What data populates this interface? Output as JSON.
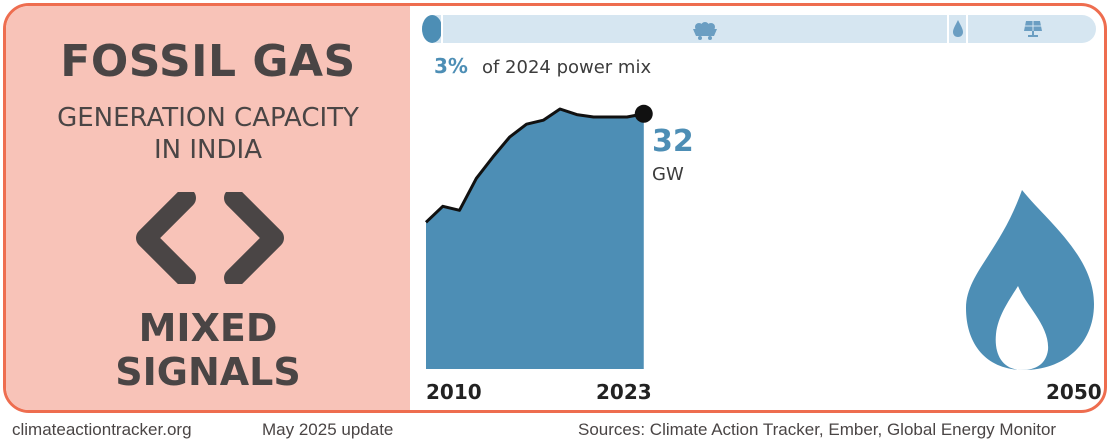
{
  "header": {
    "title": "FOSSIL GAS",
    "subtitle_lines": [
      "GENERATION CAPACITY",
      "IN INDIA"
    ]
  },
  "signal": {
    "icon": "mixed-signals-chevrons-icon",
    "label_lines": [
      "MIXED",
      "SIGNALS"
    ]
  },
  "power_mix": {
    "share": "3%",
    "label": "of 2024 power mix",
    "share_fraction": 0.03,
    "icons": [
      "coal-cart-icon",
      "water-drop-icon",
      "solar-panel-icon"
    ]
  },
  "colors": {
    "accent": "#4d8eb5",
    "border": "#ee6d4f",
    "left_panel": "#f8c3b8",
    "text_dark": "#4a4545",
    "bar_track": "#d6e6f1"
  },
  "chart_data": {
    "type": "area",
    "x": [
      2010,
      2011,
      2012,
      2013,
      2014,
      2015,
      2016,
      2017,
      2018,
      2019,
      2020,
      2021,
      2022,
      2023
    ],
    "y": [
      18.4,
      20.4,
      19.9,
      23.9,
      26.6,
      29.1,
      30.7,
      31.2,
      32.6,
      31.9,
      31.6,
      31.6,
      31.6,
      32.0
    ],
    "xlim": [
      2010,
      2050
    ],
    "ylim": [
      0,
      32.6
    ],
    "tick_labels": [
      "2010",
      "2023",
      "2050"
    ],
    "end_value": "32",
    "end_unit": "GW",
    "future_icon": "flame-icon"
  },
  "footer": {
    "site": "climateactiontracker.org",
    "update": "May 2025 update",
    "sources": "Sources: Climate Action Tracker, Ember, Global Energy Monitor"
  }
}
